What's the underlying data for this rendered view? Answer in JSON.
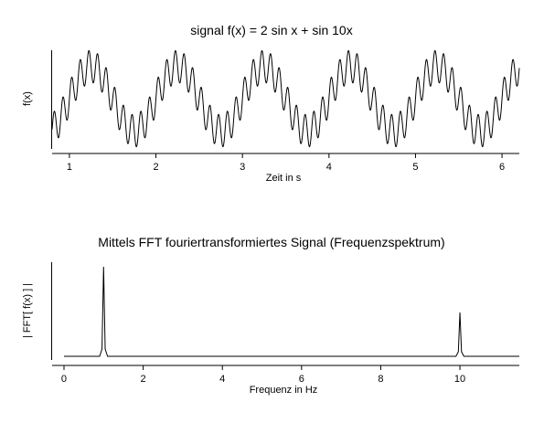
{
  "chart_data": [
    {
      "type": "line",
      "title": "signal f(x) = 2 sin x  +  sin 10x",
      "xlabel": "Zeit in s",
      "ylabel": "f(x)",
      "xlim": [
        0.8,
        6.2
      ],
      "ylim": [
        -3,
        3
      ],
      "x_ticks": [
        1,
        2,
        3,
        4,
        5,
        6
      ],
      "y_ticks": [],
      "grid": false,
      "series": [
        {
          "formula": "2*sin(2*pi*x) + sin(20*pi*x)",
          "x_range": [
            0.8,
            6.2
          ],
          "color": "#000000"
        }
      ]
    },
    {
      "type": "line",
      "title": "Mittels FFT fouriertransformiertes Signal (Frequenzspektrum)",
      "xlabel": "Frequenz in Hz",
      "ylabel": "| FFT[ f(x) ] |",
      "xlim": [
        -0.3,
        11.5
      ],
      "ylim": [
        0,
        1.05
      ],
      "x_ticks": [
        0,
        2,
        4,
        6,
        8,
        10
      ],
      "y_ticks": [],
      "grid": false,
      "series": [
        {
          "color": "#000000",
          "x": [
            0.0,
            0.9,
            0.96,
            1.0,
            1.04,
            1.1,
            9.9,
            9.96,
            10.0,
            10.04,
            10.1,
            11.5
          ],
          "y": [
            0.02,
            0.02,
            0.1,
            1.0,
            0.1,
            0.02,
            0.02,
            0.07,
            0.5,
            0.07,
            0.02,
            0.02
          ]
        }
      ]
    }
  ]
}
